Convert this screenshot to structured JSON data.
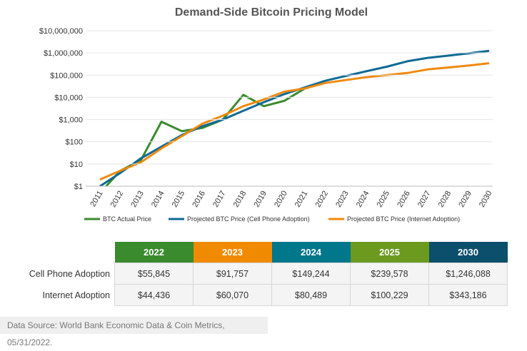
{
  "chart_data": {
    "type": "line",
    "title": "Demand-Side Bitcoin Pricing Model",
    "categories": [
      "2011",
      "2012",
      "2013",
      "2014",
      "2015",
      "2016",
      "2017",
      "2018",
      "2019",
      "2020",
      "2021",
      "2022",
      "2023",
      "2024",
      "2025",
      "2026",
      "2027",
      "2028",
      "2029",
      "2030"
    ],
    "series": [
      {
        "name": "BTC Actual Price",
        "color": "#3a8a2e",
        "values": [
          0.5,
          5,
          15,
          800,
          300,
          420,
          1000,
          13000,
          4000,
          7000,
          25000,
          null,
          null,
          null,
          null,
          null,
          null,
          null,
          null,
          null
        ]
      },
      {
        "name": "Projected BTC Price (Cell Phone Adoption)",
        "color": "#0f6a94",
        "values": [
          1,
          4,
          18,
          60,
          200,
          500,
          1000,
          2500,
          6000,
          14000,
          28000,
          55845,
          91757,
          149244,
          239578,
          420000,
          600000,
          750000,
          950000,
          1246088
        ]
      },
      {
        "name": "Projected BTC Price (Internet Adoption)",
        "color": "#ee8a0e",
        "values": [
          2,
          5,
          12,
          50,
          180,
          650,
          1500,
          4000,
          8000,
          18000,
          25000,
          44436,
          60070,
          80489,
          100229,
          125000,
          180000,
          220000,
          270000,
          343186
        ]
      }
    ],
    "yscale": "log",
    "ylim": [
      1,
      10000000
    ],
    "yticks": [
      {
        "value": 1,
        "label": "$1"
      },
      {
        "value": 10,
        "label": "$10"
      },
      {
        "value": 100,
        "label": "$100"
      },
      {
        "value": 1000,
        "label": "$1,000"
      },
      {
        "value": 10000,
        "label": "$10,000"
      },
      {
        "value": 100000,
        "label": "$100,000"
      },
      {
        "value": 1000000,
        "label": "$1,000,000"
      },
      {
        "value": 10000000,
        "label": "$10,000,000"
      }
    ],
    "grid": true
  },
  "table": {
    "header": [
      {
        "label": "2022",
        "color": "#3a8a2e"
      },
      {
        "label": "2023",
        "color": "#f08a00"
      },
      {
        "label": "2024",
        "color": "#00778b"
      },
      {
        "label": "2025",
        "color": "#6b9a1f"
      },
      {
        "label": "2030",
        "color": "#0b4f6c"
      }
    ],
    "rows": [
      [
        "Cell Phone Adoption",
        "$55,845",
        "$91,757",
        "$149,244",
        "$239,578",
        "$1,246,088"
      ],
      [
        "Internet Adoption",
        "$44,436",
        "$60,070",
        "$80,489",
        "$100,229",
        "$343,186"
      ]
    ]
  },
  "source": "Data Source: World Bank Economic Data & Coin Metrics, 05/31/2022."
}
